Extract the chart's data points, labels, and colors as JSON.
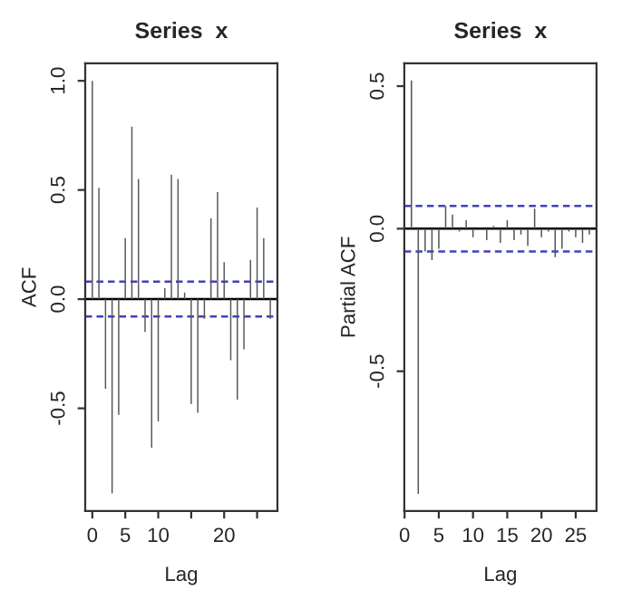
{
  "chart_data": [
    {
      "type": "bar",
      "title": "Series  x",
      "xlabel": "Lag",
      "ylabel": "ACF",
      "color": "#555555",
      "x": [
        0,
        1,
        2,
        3,
        4,
        5,
        6,
        7,
        8,
        9,
        10,
        11,
        12,
        13,
        14,
        15,
        16,
        17,
        18,
        19,
        20,
        21,
        22,
        23,
        24,
        25,
        26,
        27
      ],
      "values": [
        1.0,
        0.51,
        -0.41,
        -0.89,
        -0.53,
        0.28,
        0.79,
        0.55,
        -0.15,
        -0.68,
        -0.56,
        0.05,
        0.57,
        0.55,
        0.03,
        -0.48,
        -0.52,
        -0.09,
        0.37,
        0.49,
        0.17,
        -0.28,
        -0.46,
        -0.23,
        0.18,
        0.42,
        0.28,
        -0.09
      ],
      "xlim": [
        -1.08,
        28.08
      ],
      "ylim": [
        -0.97,
        1.08
      ],
      "xticks": [
        0,
        5,
        10,
        {
          "value": 15,
          "label": null
        },
        20,
        {
          "value": 25,
          "label": null
        }
      ],
      "yticks": [
        {
          "value": -0.5,
          "label": "-0.5"
        },
        {
          "value": 0,
          "label": "0.0"
        },
        {
          "value": 0.5,
          "label": "0.5"
        },
        {
          "value": 1,
          "label": "1.0"
        }
      ],
      "ref_lines": [
        {
          "axis": "y",
          "value": 0,
          "color": "#000000",
          "line_style": "solid"
        },
        {
          "axis": "y",
          "value": 0.08,
          "color": "#4040c0",
          "line_style": "dashed"
        },
        {
          "axis": "y",
          "value": -0.08,
          "color": "#4040c0",
          "line_style": "dashed"
        }
      ]
    },
    {
      "type": "bar",
      "title": "Series  x",
      "xlabel": "Lag",
      "ylabel": "Partial ACF",
      "color": "#555555",
      "x": [
        1,
        2,
        3,
        4,
        5,
        6,
        7,
        8,
        9,
        10,
        11,
        12,
        13,
        14,
        15,
        16,
        17,
        18,
        19,
        20,
        21,
        22,
        23,
        24,
        25,
        26,
        27
      ],
      "values": [
        0.52,
        -0.93,
        -0.08,
        -0.11,
        -0.07,
        0.08,
        0.05,
        -0.01,
        0.03,
        -0.03,
        0.0,
        -0.04,
        0.01,
        -0.05,
        0.03,
        -0.04,
        -0.02,
        -0.06,
        0.07,
        -0.03,
        -0.01,
        -0.1,
        -0.07,
        -0.01,
        -0.03,
        -0.05,
        -0.02
      ],
      "xlim": [
        -0.04,
        28.04
      ],
      "ylim": [
        -0.99,
        0.58
      ],
      "xticks": [
        0,
        5,
        10,
        15,
        20,
        25
      ],
      "yticks": [
        {
          "value": -0.5,
          "label": "-0.5"
        },
        {
          "value": 0,
          "label": "0.0"
        },
        {
          "value": 0.5,
          "label": "0.5"
        }
      ],
      "ref_lines": [
        {
          "axis": "y",
          "value": 0,
          "color": "#000000",
          "line_style": "solid"
        },
        {
          "axis": "y",
          "value": 0.08,
          "color": "#4040c0",
          "line_style": "dashed"
        },
        {
          "axis": "y",
          "value": -0.08,
          "color": "#4040c0",
          "line_style": "dashed"
        }
      ]
    }
  ]
}
